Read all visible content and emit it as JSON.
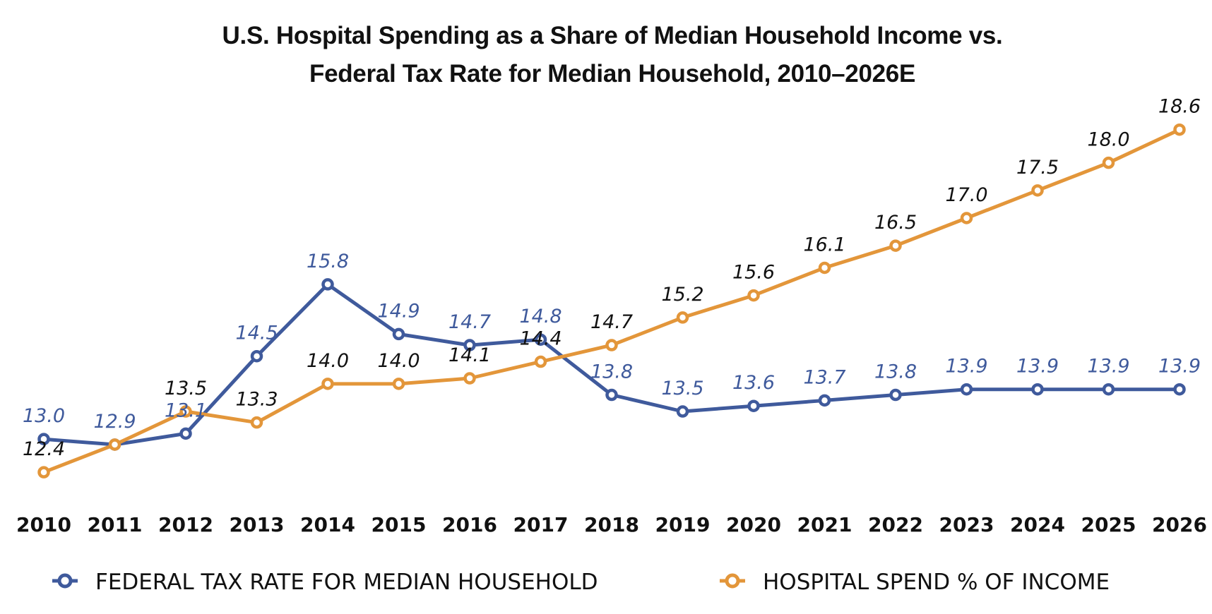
{
  "chart_data": {
    "type": "line",
    "title": "U.S. Hospital Spending as a Share of Median Household Income vs.",
    "title_line2": "Federal Tax Rate for Median Household, 2010–2026E",
    "xlabel": "",
    "ylabel": "",
    "x": [
      "2010",
      "2011",
      "2012",
      "2013",
      "2014",
      "2015",
      "2016",
      "2017",
      "2018",
      "2019",
      "2020",
      "2021",
      "2022",
      "2023",
      "2024",
      "2025",
      "2026"
    ],
    "ylim": [
      12.0,
      19.0
    ],
    "grid": false,
    "legend_position": "bottom",
    "series": [
      {
        "name": "FEDERAL TAX RATE FOR MEDIAN HOUSEHOLD",
        "color": "#3F5A9C",
        "label_color": "#3F5A9C",
        "values": [
          13.0,
          12.9,
          13.1,
          14.5,
          15.8,
          14.9,
          14.7,
          14.8,
          13.8,
          13.5,
          13.6,
          13.7,
          13.8,
          13.9,
          13.9,
          13.9,
          13.9
        ],
        "labels": [
          "13.0",
          "12.9",
          "13.1",
          "14.5",
          "15.8",
          "14.9",
          "14.7",
          "14.8",
          "13.8",
          "13.5",
          "13.6",
          "13.7",
          "13.8",
          "13.9",
          "13.9",
          "13.9",
          "13.9"
        ]
      },
      {
        "name": "HOSPITAL SPEND % OF INCOME",
        "color": "#E3963A",
        "label_color": "#111111",
        "values": [
          12.4,
          12.9,
          13.5,
          13.3,
          14.0,
          14.0,
          14.1,
          14.4,
          14.7,
          15.2,
          15.6,
          16.1,
          16.5,
          17.0,
          17.5,
          18.0,
          18.6
        ],
        "labels": [
          "12.4",
          "",
          "13.5",
          "13.3",
          "14.0",
          "14.0",
          "14.1",
          "14.4",
          "14.7",
          "15.2",
          "15.6",
          "16.1",
          "16.5",
          "17.0",
          "17.5",
          "18.0",
          "18.6"
        ]
      }
    ]
  }
}
